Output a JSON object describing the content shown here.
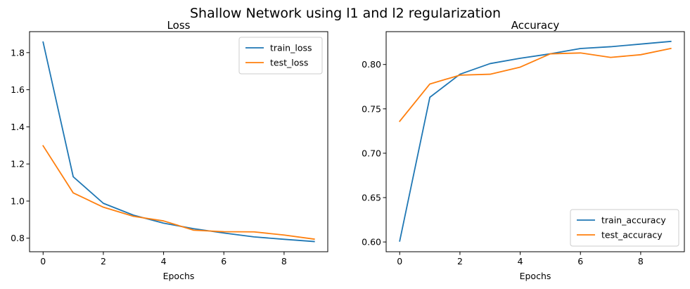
{
  "suptitle": "Shallow Network using l1 and l2 regularization",
  "colors": {
    "series_1": "#1f77b4",
    "series_2": "#ff7f0e",
    "axes": "#000000",
    "legend_border": "#cccccc",
    "background": "#ffffff"
  },
  "chart_data": [
    {
      "type": "line",
      "title": "Loss",
      "xlabel": "Epochs",
      "ylabel": "",
      "x": [
        0,
        1,
        2,
        3,
        4,
        5,
        6,
        7,
        8,
        9
      ],
      "xlim": [
        -0.45,
        9.45
      ],
      "ylim": [
        0.727,
        1.913
      ],
      "xticks": [
        0,
        2,
        4,
        6,
        8
      ],
      "yticks": [
        0.8,
        1.0,
        1.2,
        1.4,
        1.6,
        1.8
      ],
      "ytick_decimals": 1,
      "grid": false,
      "legend_position": "top-right",
      "series": [
        {
          "name": "train_loss",
          "values": [
            1.857,
            1.131,
            0.988,
            0.924,
            0.881,
            0.851,
            0.828,
            0.807,
            0.794,
            0.782
          ]
        },
        {
          "name": "test_loss",
          "values": [
            1.298,
            1.044,
            0.967,
            0.918,
            0.893,
            0.843,
            0.835,
            0.834,
            0.817,
            0.795
          ]
        }
      ]
    },
    {
      "type": "line",
      "title": "Accuracy",
      "xlabel": "Epochs",
      "ylabel": "",
      "x": [
        0,
        1,
        2,
        3,
        4,
        5,
        6,
        7,
        8,
        9
      ],
      "xlim": [
        -0.45,
        9.45
      ],
      "ylim": [
        0.589,
        0.837
      ],
      "xticks": [
        0,
        2,
        4,
        6,
        8
      ],
      "yticks": [
        0.6,
        0.65,
        0.7,
        0.75,
        0.8
      ],
      "ytick_decimals": 2,
      "grid": false,
      "legend_position": "bottom-right",
      "series": [
        {
          "name": "train_accuracy",
          "values": [
            0.601,
            0.763,
            0.789,
            0.801,
            0.807,
            0.812,
            0.818,
            0.82,
            0.823,
            0.826
          ]
        },
        {
          "name": "test_accuracy",
          "values": [
            0.736,
            0.778,
            0.788,
            0.789,
            0.797,
            0.812,
            0.813,
            0.808,
            0.811,
            0.818
          ]
        }
      ]
    }
  ]
}
